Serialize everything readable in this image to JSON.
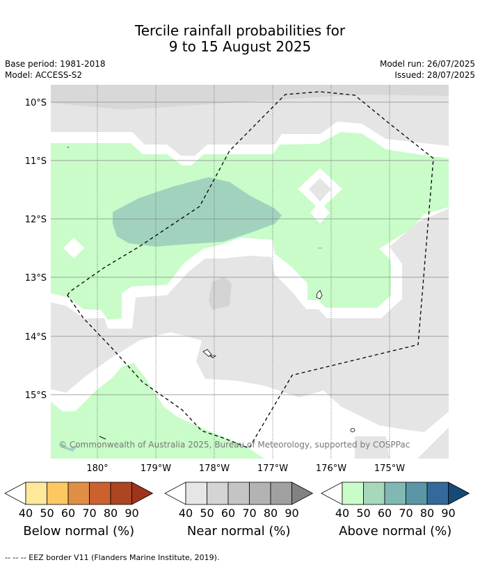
{
  "title_line1": "Tercile rainfall probabilities for",
  "title_line2": "9 to 15 August 2025",
  "base_period": "Base period: 1981-2018",
  "model": "Model: ACCESS-S2",
  "model_run": "Model run: 26/07/2025",
  "issued": "Issued: 28/07/2025",
  "map": {
    "lat_labels": [
      "10°S",
      "11°S",
      "12°S",
      "13°S",
      "14°S",
      "15°S"
    ],
    "lon_labels": [
      "180°",
      "179°W",
      "178°W",
      "177°W",
      "176°W",
      "175°W"
    ],
    "copyright": "© Commonwealth of Australia 2025, Bureau of Meteorology, supported by COSPPac"
  },
  "colorbars": [
    {
      "label": "Below normal (%)",
      "ticks": [
        "40",
        "50",
        "60",
        "70",
        "80",
        "90"
      ],
      "colors": [
        "#ffffff",
        "#fee899",
        "#fdc862",
        "#e08e45",
        "#cc6130",
        "#ac4522",
        "#a0341a"
      ]
    },
    {
      "label": "Near normal (%)",
      "ticks": [
        "40",
        "50",
        "60",
        "70",
        "80",
        "90"
      ],
      "colors": [
        "#ffffff",
        "#e6e6e6",
        "#d4d4d4",
        "#c4c4c4",
        "#b3b3b3",
        "#a0a0a0",
        "#828282"
      ]
    },
    {
      "label": "Above normal (%)",
      "ticks": [
        "40",
        "50",
        "60",
        "70",
        "80",
        "90"
      ],
      "colors": [
        "#ffffff",
        "#c9fcc9",
        "#a7d8bc",
        "#80b8b4",
        "#5b96a6",
        "#336a9b",
        "#15497a"
      ]
    }
  ],
  "footnote": "--  --  -- EEZ border V11 (Flanders Marine Institute, 2019)."
}
